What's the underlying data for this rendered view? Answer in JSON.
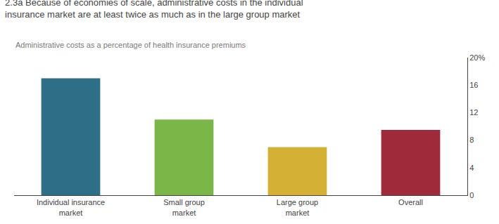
{
  "chart_data": {
    "type": "bar",
    "title": "2.3a Because of economies of scale, administrative costs in the individual\ninsurance market are at least twice as much as in the large group market",
    "subtitle": "Administrative costs as a percentage of health insurance premiums",
    "categories": [
      "Individual insurance\nmarket",
      "Small group\nmarket",
      "Large group\nmarket",
      "Overall"
    ],
    "values": [
      17.0,
      11.0,
      7.0,
      9.5
    ],
    "colors": [
      "#2e6e87",
      "#7ab648",
      "#d4b135",
      "#9e2a3a"
    ],
    "ylim": [
      0,
      20
    ],
    "yticks": [
      0,
      4,
      8,
      12,
      16,
      {
        "value": 20,
        "label": "20%"
      }
    ],
    "grid": false
  }
}
